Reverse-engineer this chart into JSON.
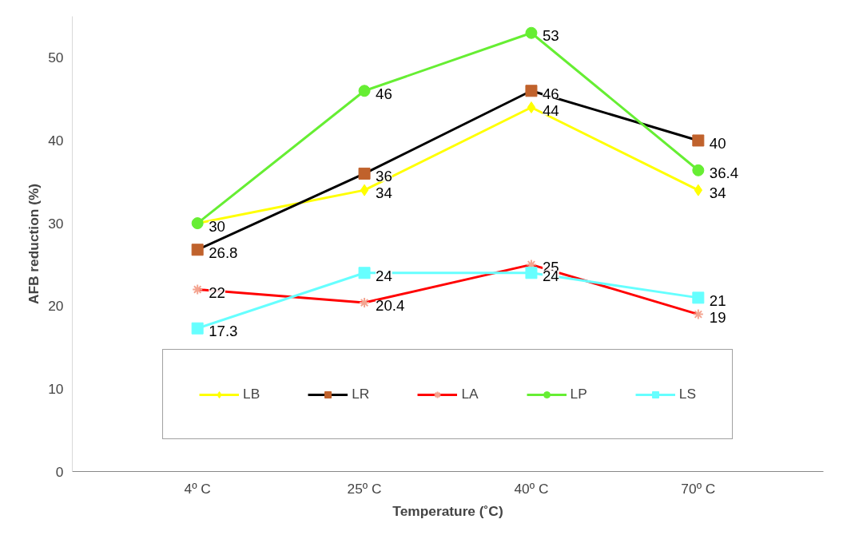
{
  "chart_data": {
    "type": "line",
    "xlabel": "Temperature (˚C)",
    "ylabel": "AFB reduction (%)",
    "categories": [
      "4º C",
      "25º C",
      "40º C",
      "70º C"
    ],
    "ylim": [
      0,
      55
    ],
    "yticks": [
      0,
      10,
      20,
      30,
      40,
      50
    ],
    "series": [
      {
        "name": "LB",
        "color": "#ffff00",
        "colors": [
          "#ffff00",
          "#ffff00",
          "#ffff00",
          "#ffff00"
        ],
        "marker": "diamond",
        "values": [
          30,
          34,
          44,
          34
        ],
        "value_labels": [
          null,
          "34",
          "44",
          "34"
        ]
      },
      {
        "name": "LR",
        "color": "#000000",
        "colors": [
          "#c0622c",
          "#c0622c",
          "#c0622c",
          "#c0622c"
        ],
        "marker": "square",
        "values": [
          26.8,
          36,
          46,
          40
        ]
      },
      {
        "name": "LA",
        "color": "#ff0000",
        "colors": [
          "#f4a490",
          "#f4a490",
          "#f4a490",
          "#f4a490"
        ],
        "marker": "cross",
        "values": [
          22,
          20.4,
          25,
          19
        ]
      },
      {
        "name": "LP",
        "color": "#66ee33",
        "colors": [
          "#66ee33",
          "#66ee33",
          "#66ee33",
          "#66ee33"
        ],
        "marker": "circle",
        "values": [
          30,
          46,
          53,
          36.4
        ]
      },
      {
        "name": "LS",
        "color": "#66ffff",
        "colors": [
          "#66ffff",
          "#66ffff",
          "#66ffff",
          "#66ffff"
        ],
        "marker": "square",
        "values": [
          17.3,
          24,
          24,
          21
        ]
      }
    ],
    "data_labels": true,
    "grid": false,
    "legend": "bottom",
    "line_style": "solid"
  }
}
